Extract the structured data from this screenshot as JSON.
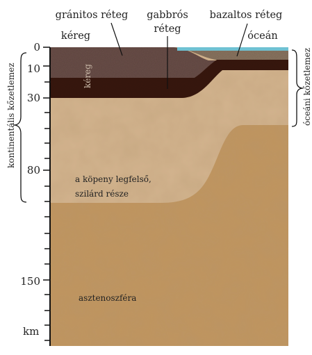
{
  "diagram": {
    "labels": {
      "granite_layer": "gránitos réteg",
      "gabbro_layer_line1": "gabbrós",
      "gabbro_layer_line2": "réteg",
      "basalt_layer": "bazaltos réteg",
      "crust_top": "kéreg",
      "ocean": "óceán",
      "crust_inner": "kéreg",
      "upper_mantle_line1": "a köpeny legfelső,",
      "upper_mantle_line2": "szilárd része",
      "asthenosphere": "asztenoszféra",
      "continental_lithosphere": "kontinentális kőzetlemez",
      "oceanic_lithosphere": "óceáni kőzetlemez"
    },
    "depth_axis": {
      "ticks": [
        "0",
        "10",
        "30",
        "80",
        "150"
      ],
      "unit": "km"
    },
    "colors": {
      "ocean": "#6fc1d2",
      "granite": "#6b5048",
      "gabbro": "#3a1e14",
      "basalt_dark": "#3a1e14",
      "sediment": "#8a7560",
      "upper_mantle": "#d3b48f",
      "asthenosphere": "#c0955f"
    }
  }
}
